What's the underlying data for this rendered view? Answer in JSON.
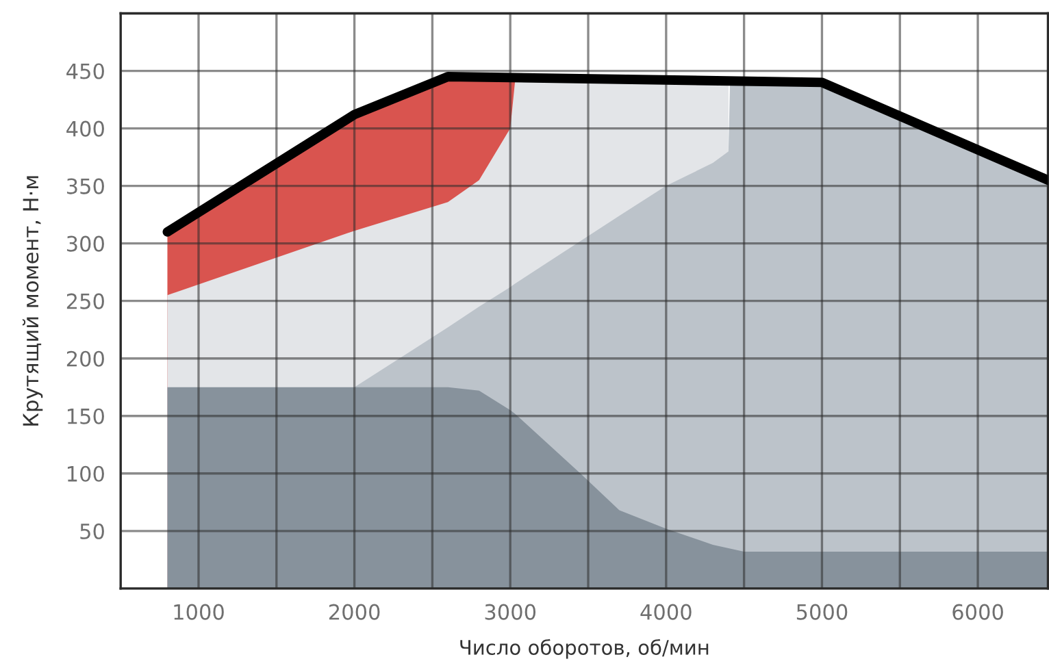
{
  "chart_data": {
    "type": "area",
    "xlabel": "Число оборотов, об/мин",
    "ylabel": "Крутящий момент, Н·м",
    "xlim": [
      500,
      6450
    ],
    "ylim": [
      0,
      500
    ],
    "xticks": [
      {
        "value": 500,
        "label": null
      },
      1000,
      {
        "value": 1500,
        "label": null
      },
      2000,
      {
        "value": 2500,
        "label": null
      },
      3000,
      {
        "value": 3500,
        "label": null
      },
      4000,
      {
        "value": 4500,
        "label": null
      },
      5000,
      {
        "value": 5500,
        "label": null
      },
      6000
    ],
    "yticks": [
      {
        "value": 0,
        "label": null
      },
      50,
      100,
      150,
      200,
      250,
      300,
      350,
      400,
      450,
      {
        "value": 500,
        "label": null
      }
    ],
    "grid": true,
    "series": [
      {
        "color": "#d9544f",
        "x": [
          800,
          2000,
          2600,
          2800,
          3000,
          3030
        ],
        "values": [
          310,
          412,
          445,
          445,
          444,
          440
        ]
      },
      {
        "color": "#e3e5e8",
        "x": [
          800,
          2000,
          2600,
          2800,
          3000,
          3030,
          3450,
          3700,
          4000,
          4300,
          4400
        ],
        "values": [
          255,
          311,
          336,
          355,
          400,
          440,
          440,
          440,
          440,
          440,
          440
        ]
      },
      {
        "color": "#bcc3ca",
        "x": [
          2000,
          2600,
          2800,
          3000,
          3030,
          3450,
          3700,
          4000,
          4300,
          4400,
          4410,
          4500,
          5000,
          6450
        ],
        "values": [
          175,
          227,
          245,
          262,
          265,
          302,
          324,
          350,
          370,
          380,
          440,
          440,
          440,
          355
        ]
      },
      {
        "color": "#87929c",
        "x": [
          800,
          2000,
          2600,
          2800,
          3000,
          3030,
          3450,
          3700,
          4000,
          4300,
          4400,
          4500,
          5000,
          6450
        ],
        "values": [
          175,
          175,
          175,
          172,
          155,
          152,
          100,
          68,
          52,
          38,
          35,
          32,
          32,
          32
        ]
      },
      {
        "type": "line",
        "color": "#000000",
        "x": [
          800,
          2000,
          2600,
          5000,
          6450
        ],
        "values": [
          310,
          412,
          445,
          440,
          355
        ]
      }
    ]
  }
}
